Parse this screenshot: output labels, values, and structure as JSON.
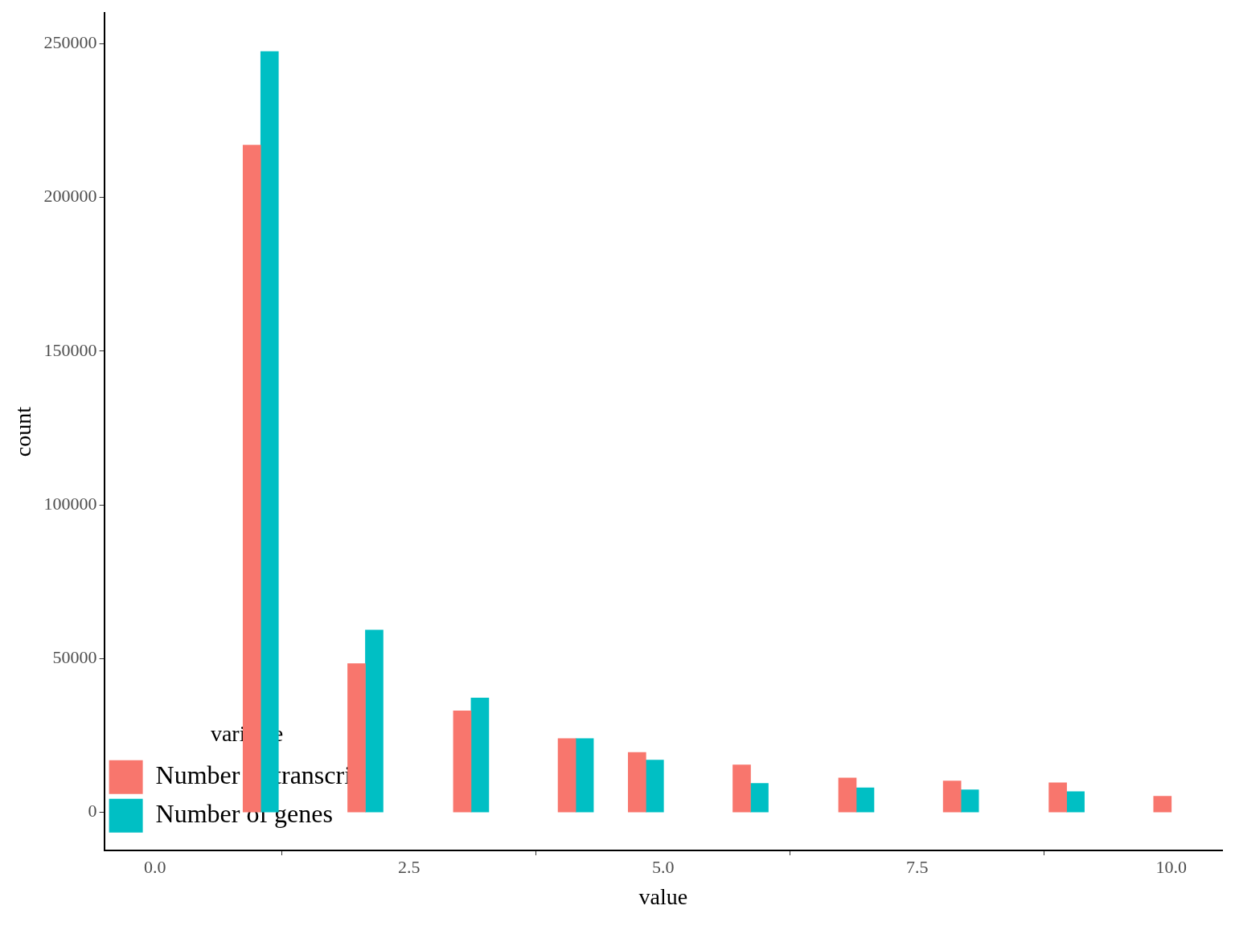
{
  "chart_data": {
    "type": "bar",
    "x_label": "value",
    "y_label": "count",
    "legend_title": "variable",
    "x": [
      1.04,
      2.07,
      3.11,
      4.14,
      4.83,
      5.86,
      6.9,
      7.93,
      8.97,
      10.0
    ],
    "series": [
      {
        "name": "Number of transcripts",
        "color": "#f8766d",
        "values": [
          217000,
          48400,
          33000,
          24000,
          19500,
          15400,
          11200,
          10200,
          9600,
          5200
        ]
      },
      {
        "name": "Number of genes",
        "color": "#00bfc4",
        "values": [
          247500,
          59300,
          37200,
          24000,
          17000,
          9400,
          8000,
          7300,
          6700,
          null
        ]
      }
    ],
    "xlim": [
      -0.5,
      10.5
    ],
    "xticks": [
      {
        "value": 0,
        "label": "0.0"
      },
      2.5,
      {
        "value": 5,
        "label": "5.0"
      },
      7.5,
      {
        "value": 10,
        "label": "10.0"
      }
    ],
    "ylim": [
      -12400,
      260000
    ],
    "yticks": [
      0,
      50000,
      100000,
      150000,
      200000,
      250000
    ],
    "grid": false,
    "legend": "upper right"
  }
}
